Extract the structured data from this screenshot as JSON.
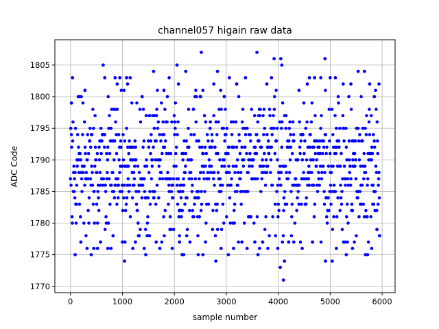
{
  "chart_data": {
    "type": "scatter",
    "title": "channel057 higain raw data",
    "xlabel": "sample number",
    "ylabel": "ADC Code",
    "xlim": [
      -300,
      6250
    ],
    "ylim": [
      1769,
      1809
    ],
    "x_ticks": [
      0,
      1000,
      2000,
      3000,
      4000,
      5000,
      6000
    ],
    "y_ticks": [
      1770,
      1775,
      1780,
      1785,
      1790,
      1795,
      1800,
      1805
    ],
    "grid": true,
    "marker_color": "#0000ff",
    "series": [
      {
        "n_samples": 6000,
        "x_range": [
          0,
          5950
        ],
        "band_range": [
          1777,
          1801
        ],
        "points": [
          [
            20,
            1799
          ],
          [
            40,
            1803
          ],
          [
            90,
            1775
          ],
          [
            150,
            1800
          ],
          [
            200,
            1777
          ],
          [
            280,
            1801
          ],
          [
            320,
            1776
          ],
          [
            400,
            1775
          ],
          [
            450,
            1776
          ],
          [
            520,
            1776
          ],
          [
            580,
            1777
          ],
          [
            630,
            1805
          ],
          [
            660,
            1803
          ],
          [
            720,
            1776
          ],
          [
            780,
            1776
          ],
          [
            820,
            1778
          ],
          [
            860,
            1803
          ],
          [
            900,
            1802
          ],
          [
            950,
            1803
          ],
          [
            1000,
            1777
          ],
          [
            1040,
            1774
          ],
          [
            1050,
            1777
          ],
          [
            1080,
            1803
          ],
          [
            1100,
            1802
          ],
          [
            1150,
            1803
          ],
          [
            1200,
            1776
          ],
          [
            1250,
            1777
          ],
          [
            1320,
            1778
          ],
          [
            1380,
            1800
          ],
          [
            1420,
            1776
          ],
          [
            1450,
            1775
          ],
          [
            1520,
            1778
          ],
          [
            1600,
            1804
          ],
          [
            1650,
            1777
          ],
          [
            1720,
            1776
          ],
          [
            1800,
            1801
          ],
          [
            1900,
            1803
          ],
          [
            1960,
            1776
          ],
          [
            2050,
            1805
          ],
          [
            2080,
            1802
          ],
          [
            2100,
            1777
          ],
          [
            2150,
            1775
          ],
          [
            2180,
            1775
          ],
          [
            2220,
            1804
          ],
          [
            2300,
            1777
          ],
          [
            2400,
            1800
          ],
          [
            2460,
            1775
          ],
          [
            2520,
            1807
          ],
          [
            2550,
            1775
          ],
          [
            2600,
            1777
          ],
          [
            2760,
            1802
          ],
          [
            2800,
            1774
          ],
          [
            2830,
            1804
          ],
          [
            2900,
            1776
          ],
          [
            2960,
            1800
          ],
          [
            3040,
            1775
          ],
          [
            3060,
            1803
          ],
          [
            3140,
            1776
          ],
          [
            3200,
            1802
          ],
          [
            3300,
            1777
          ],
          [
            3370,
            1803
          ],
          [
            3400,
            1776
          ],
          [
            3550,
            1777
          ],
          [
            3590,
            1807
          ],
          [
            3610,
            1775
          ],
          [
            3640,
            1776
          ],
          [
            3700,
            1777
          ],
          [
            3780,
            1802
          ],
          [
            3800,
            1776
          ],
          [
            3870,
            1803
          ],
          [
            3920,
            1806
          ],
          [
            3990,
            1776
          ],
          [
            4040,
            1773
          ],
          [
            4050,
            1806
          ],
          [
            4070,
            1805
          ],
          [
            4100,
            1771
          ],
          [
            4120,
            1774
          ],
          [
            4200,
            1777
          ],
          [
            4300,
            1777
          ],
          [
            4400,
            1801
          ],
          [
            4460,
            1776
          ],
          [
            4560,
            1802
          ],
          [
            4600,
            1803
          ],
          [
            4660,
            1777
          ],
          [
            4700,
            1803
          ],
          [
            4820,
            1803
          ],
          [
            4900,
            1806
          ],
          [
            4910,
            1774
          ],
          [
            5000,
            1803
          ],
          [
            5040,
            1774
          ],
          [
            5100,
            1803
          ],
          [
            5120,
            1776
          ],
          [
            5250,
            1802
          ],
          [
            5310,
            1775
          ],
          [
            5400,
            1802
          ],
          [
            5430,
            1776
          ],
          [
            5540,
            1804
          ],
          [
            5660,
            1804
          ],
          [
            5680,
            1775
          ],
          [
            5720,
            1775
          ],
          [
            5760,
            1802
          ],
          [
            5800,
            1776
          ],
          [
            5850,
            1800
          ],
          [
            5900,
            1779
          ],
          [
            5940,
            1802
          ],
          [
            5950,
            1778
          ]
        ]
      }
    ]
  }
}
